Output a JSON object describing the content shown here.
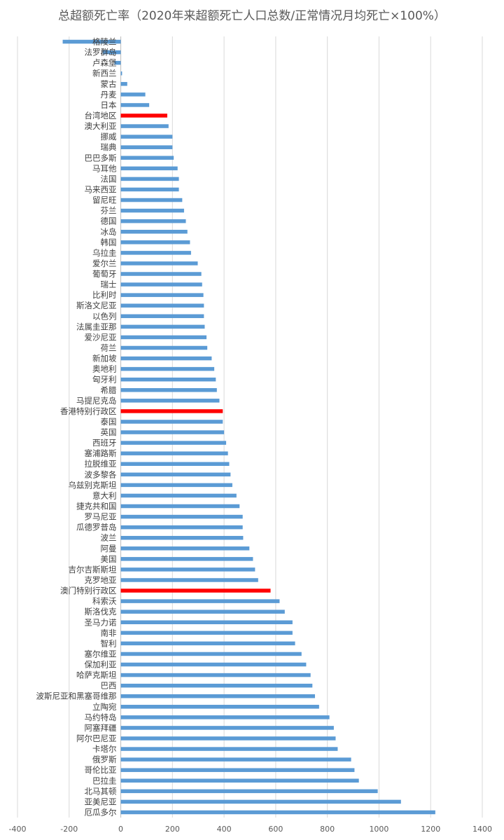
{
  "chart_data": {
    "type": "bar",
    "orientation": "horizontal",
    "title": "总超额死亡率（2020年来超额死亡人口总数/正常情况月均死亡×100%）",
    "xlim": [
      -400,
      1400
    ],
    "xticks": [
      "-400",
      "-200",
      "0",
      "200",
      "400",
      "600",
      "800",
      "1000",
      "1200",
      "1400"
    ],
    "grid": "vertical",
    "colors": {
      "default": "#5b9bd5",
      "highlight": "#ff0000"
    },
    "categories": [
      "格陵兰",
      "法罗群岛",
      "卢森堡",
      "新西兰",
      "蒙古",
      "丹麦",
      "日本",
      "台湾地区",
      "澳大利亚",
      "挪威",
      "瑞典",
      "巴巴多斯",
      "马耳他",
      "法国",
      "马来西亚",
      "留尼旺",
      "芬兰",
      "德国",
      "冰岛",
      "韩国",
      "乌拉圭",
      "爱尔兰",
      "葡萄牙",
      "瑞士",
      "比利时",
      "斯洛文尼亚",
      "以色列",
      "法属圭亚那",
      "爱沙尼亚",
      "荷兰",
      "新加坡",
      "奥地利",
      "匈牙利",
      "希腊",
      "马提尼克岛",
      "香港特别行政区",
      "泰国",
      "英国",
      "西班牙",
      "塞浦路斯",
      "拉脱维亚",
      "波多黎各",
      "乌兹别克斯坦",
      "意大利",
      "捷克共和国",
      "罗马尼亚",
      "瓜德罗普岛",
      "波兰",
      "阿曼",
      "美国",
      "吉尔吉斯斯坦",
      "克罗地亚",
      "澳门特别行政区",
      "科索沃",
      "斯洛伐克",
      "圣马力诺",
      "南非",
      "智利",
      "塞尔维亚",
      "保加利亚",
      "哈萨克斯坦",
      "巴西",
      "波斯尼亚和黑塞哥维那",
      "立陶宛",
      "马约特岛",
      "阿塞拜疆",
      "阿尔巴尼亚",
      "卡塔尔",
      "俄罗斯",
      "哥伦比亚",
      "巴拉圭",
      "北马其顿",
      "亚美尼亚",
      "厄瓜多尔"
    ],
    "values": [
      -225,
      -70,
      -25,
      5,
      25,
      95,
      110,
      180,
      185,
      200,
      200,
      205,
      220,
      225,
      225,
      238,
      245,
      252,
      258,
      268,
      272,
      298,
      312,
      315,
      320,
      322,
      322,
      325,
      332,
      335,
      352,
      362,
      368,
      372,
      382,
      395,
      395,
      400,
      408,
      415,
      420,
      425,
      432,
      448,
      460,
      472,
      472,
      474,
      498,
      512,
      520,
      532,
      580,
      615,
      635,
      665,
      665,
      675,
      700,
      718,
      735,
      742,
      752,
      768,
      808,
      825,
      832,
      840,
      892,
      905,
      922,
      995,
      1085,
      1218
    ],
    "highlighted": [
      "台湾地区",
      "香港特别行政区",
      "澳门特别行政区"
    ]
  }
}
